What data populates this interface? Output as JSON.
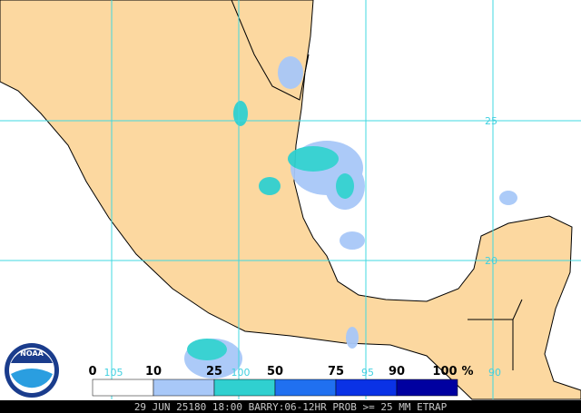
{
  "grid_labels": {
    "latitudes": [
      "25",
      "20"
    ],
    "longitudes": [
      "105",
      "100",
      "95",
      "90"
    ]
  },
  "legend": {
    "labels": [
      "0",
      "10",
      "25",
      "50",
      "75",
      "90",
      "100"
    ],
    "unit": "%",
    "colors": [
      "#ffffff",
      "#a8c8f8",
      "#30d0d0",
      "#2070f0",
      "#0a32e6",
      "#0000a0"
    ]
  },
  "caption": "29 JUN 25180 18:00 BARRY:06-12HR PROB >= 25 MM ETRAP",
  "logo": "NOAA"
}
